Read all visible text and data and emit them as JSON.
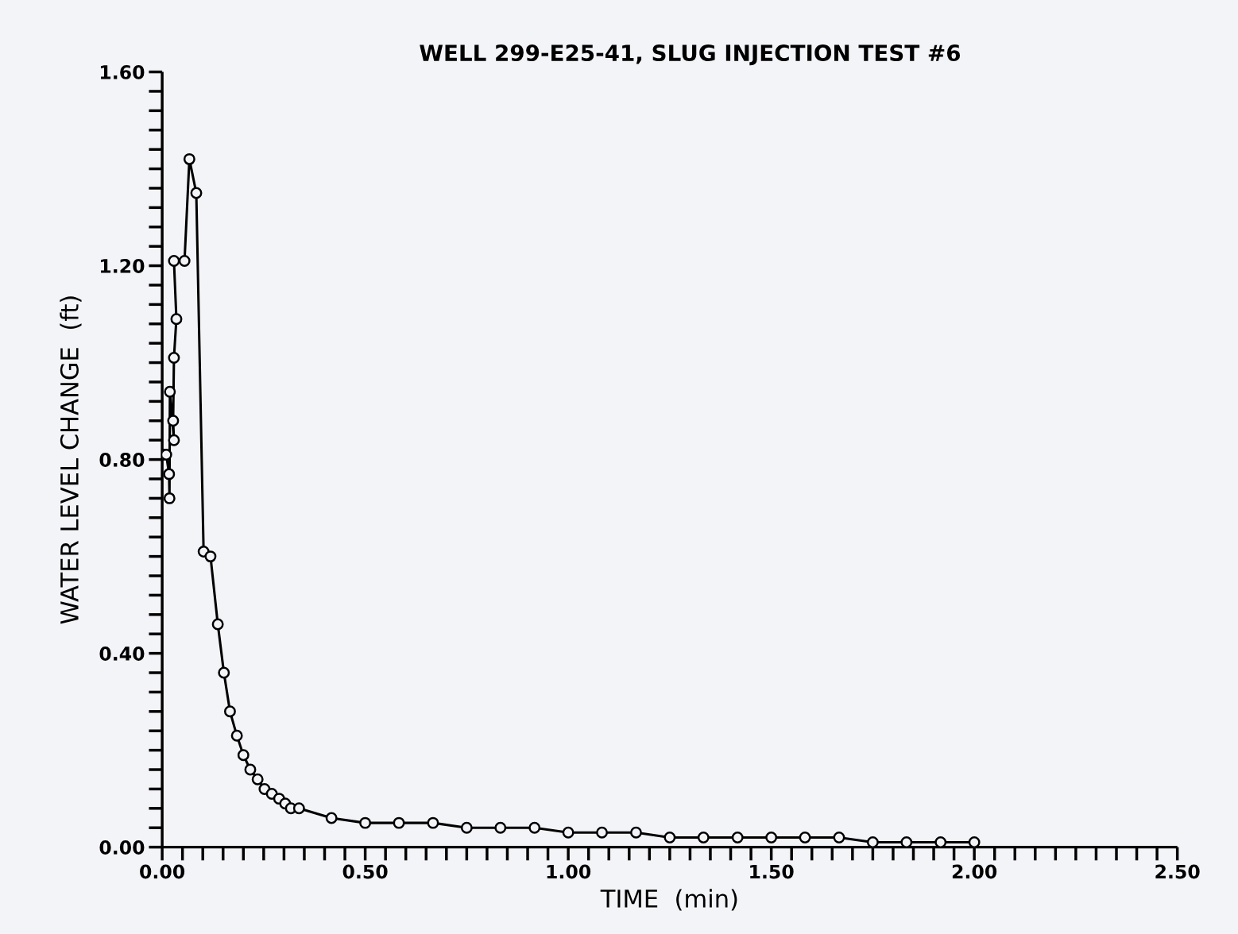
{
  "chart_data": {
    "type": "line",
    "title": "WELL 299-E25-41, SLUG INJECTION TEST #6",
    "xlabel": "TIME  (min)",
    "ylabel": "WATER LEVEL CHANGE  (ft)",
    "series": [
      {
        "color": "#000000",
        "x": [
          0.002,
          0.01,
          0.017,
          0.018,
          0.019,
          0.029,
          0.027,
          0.029,
          0.035,
          0.029,
          0.055,
          0.067,
          0.084,
          0.102,
          0.119,
          0.137,
          0.152,
          0.167,
          0.184,
          0.2,
          0.217,
          0.235,
          0.252,
          0.27,
          0.288,
          0.303,
          0.317,
          0.337,
          0.417,
          0.5,
          0.583,
          0.667,
          0.75,
          0.833,
          0.917,
          1.0,
          1.083,
          1.167,
          1.25,
          1.333,
          1.417,
          1.5,
          1.583,
          1.667,
          1.75,
          1.833,
          1.917,
          2.0
        ],
        "values": [
          0.81,
          0.81,
          0.77,
          0.72,
          0.94,
          0.84,
          0.88,
          1.01,
          1.09,
          1.21,
          1.21,
          1.42,
          1.35,
          0.61,
          0.6,
          0.46,
          0.36,
          0.28,
          0.23,
          0.19,
          0.16,
          0.14,
          0.12,
          0.11,
          0.1,
          0.09,
          0.08,
          0.08,
          0.06,
          0.05,
          0.05,
          0.05,
          0.04,
          0.04,
          0.04,
          0.03,
          0.03,
          0.03,
          0.02,
          0.02,
          0.02,
          0.02,
          0.02,
          0.02,
          0.01,
          0.01,
          0.01,
          0.01
        ]
      }
    ],
    "marker": "circle",
    "line_style": "solid",
    "grid": false,
    "legend": false,
    "xlim": [
      0,
      2.5
    ],
    "ylim": [
      0,
      1.6
    ],
    "xticks": [
      {
        "value": 0,
        "label": "0.00"
      },
      {
        "value": 0.5,
        "label": "0.50"
      },
      {
        "value": 1.0,
        "label": "1.00"
      },
      {
        "value": 1.5,
        "label": "1.50"
      },
      {
        "value": 2.0,
        "label": "2.00"
      },
      {
        "value": 2.5,
        "label": "2.50"
      }
    ],
    "yticks": [
      {
        "value": 0,
        "label": "0.00"
      },
      {
        "value": 0.4,
        "label": "0.40"
      },
      {
        "value": 0.8,
        "label": "0.80"
      },
      {
        "value": 1.2,
        "label": "1.20"
      },
      {
        "value": 1.6,
        "label": "1.60"
      }
    ]
  }
}
